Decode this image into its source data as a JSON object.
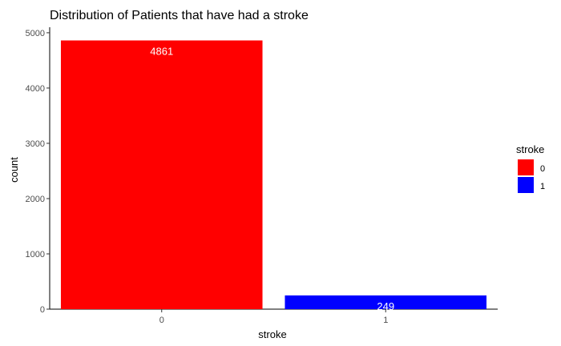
{
  "chart_data": {
    "type": "bar",
    "title": "Distribution of Patients that have had a stroke",
    "xlabel": "stroke",
    "ylabel": "count",
    "categories": [
      "0",
      "1"
    ],
    "values": [
      4861,
      249
    ],
    "data_labels": [
      "4861",
      "249"
    ],
    "colors": [
      "#ff0000",
      "#0000ff"
    ],
    "ylim": [
      0,
      5100
    ],
    "yticks": [
      0,
      1000,
      2000,
      3000,
      4000,
      5000
    ],
    "ytick_labels": [
      "0",
      "1000",
      "2000",
      "3000",
      "4000",
      "5000"
    ],
    "grid": false,
    "legend": {
      "title": "stroke",
      "placement": "right",
      "entries": [
        {
          "label": "0",
          "color": "#ff0000"
        },
        {
          "label": "1",
          "color": "#0000ff"
        }
      ]
    }
  }
}
